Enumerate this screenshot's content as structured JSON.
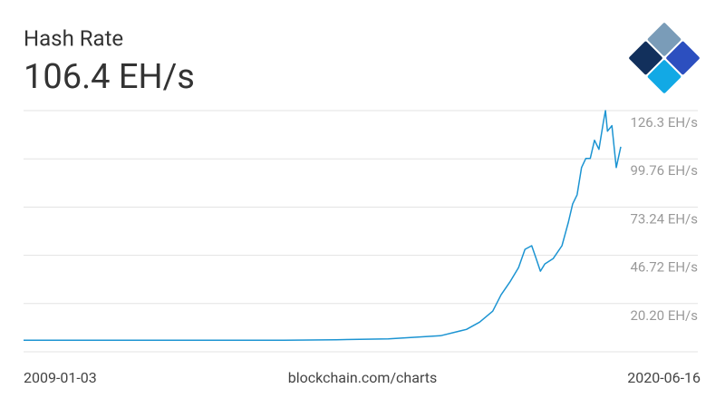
{
  "chart_data": {
    "type": "line",
    "title": "Hash Rate",
    "subtitle": "106.4 EH/s",
    "source": "blockchain.com/charts",
    "xlim": [
      "2009-01-03",
      "2020-06-16"
    ],
    "x": [
      "2009-01-03",
      "2012-01-01",
      "2013-01-01",
      "2014-01-01",
      "2015-01-01",
      "2016-01-01",
      "2017-01-01",
      "2017-07-01",
      "2017-10-01",
      "2018-01-01",
      "2018-03-01",
      "2018-05-01",
      "2018-07-01",
      "2018-08-15",
      "2018-10-01",
      "2018-11-01",
      "2018-12-01",
      "2019-01-01",
      "2019-03-01",
      "2019-05-01",
      "2019-06-15",
      "2019-07-15",
      "2019-08-15",
      "2019-09-15",
      "2019-10-15",
      "2019-11-15",
      "2019-12-15",
      "2020-01-15",
      "2020-02-15",
      "2020-03-01",
      "2020-03-15",
      "2020-04-15",
      "2020-05-15",
      "2020-06-16"
    ],
    "series": [
      {
        "name": "Hash Rate",
        "color": "#1c94d2",
        "values": [
          0,
          1e-05,
          2e-05,
          0.01,
          0.3,
          0.8,
          2.5,
          6,
          10,
          16,
          25,
          32,
          40,
          50,
          52,
          45,
          38,
          42,
          45,
          52,
          65,
          75,
          80,
          95,
          100,
          100,
          110,
          105,
          120,
          126.3,
          115,
          118,
          95,
          106.4
        ]
      }
    ],
    "ylim": [
      -6.32,
      126.3
    ],
    "yticks": [
      {
        "value": 20.2,
        "label": "20.20 EH/s"
      },
      {
        "value": 46.72,
        "label": "46.72 EH/s"
      },
      {
        "value": 73.24,
        "label": "73.24 EH/s"
      },
      {
        "value": 99.76,
        "label": "99.76 EH/s"
      },
      {
        "value": 126.3,
        "label": "126.3 EH/s"
      }
    ],
    "grid": true
  }
}
